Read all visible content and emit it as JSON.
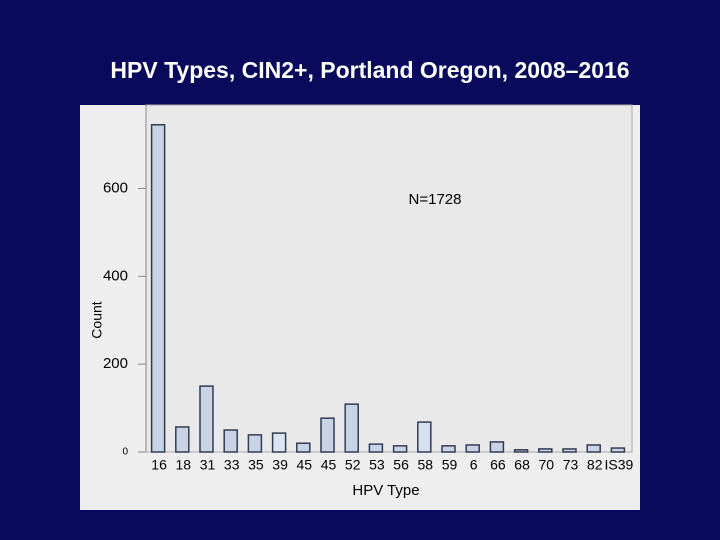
{
  "chart_data": {
    "type": "bar",
    "title": "HPV Types, CIN2+, Portland Oregon, 2008–2016",
    "annotation": "N=1728",
    "x_label": "HPV Type",
    "y_label": "Count",
    "categories": [
      "16",
      "18",
      "31",
      "33",
      "35",
      "39",
      "45",
      "45",
      "52",
      "53",
      "56",
      "58",
      "59",
      "6",
      "66",
      "68",
      "70",
      "73",
      "82",
      "IS39"
    ],
    "values": [
      745,
      57,
      150,
      50,
      39,
      43,
      20,
      77,
      109,
      18,
      14,
      68,
      14,
      16,
      23,
      5,
      7,
      7,
      16,
      9
    ],
    "colors": [
      "#c9d3e6",
      "#c9d3e6",
      "#c9d3e6",
      "#c9d3e6",
      "#c9d3e6",
      "#dbe4f3",
      "#c9d3e6",
      "#c9d3e6",
      "#c9d3e6",
      "#c9d3e6",
      "#c9d3e6",
      "#d6e0f0",
      "#c9d3e6",
      "#c9d3e6",
      "#c9d3e6",
      "#c9d3e6",
      "#c9d3e6",
      "#c9d3e6",
      "#c9d3e6",
      "#c9d3e6"
    ],
    "ylim": [
      0,
      790
    ],
    "yticks": [
      0,
      200,
      400,
      600
    ]
  }
}
